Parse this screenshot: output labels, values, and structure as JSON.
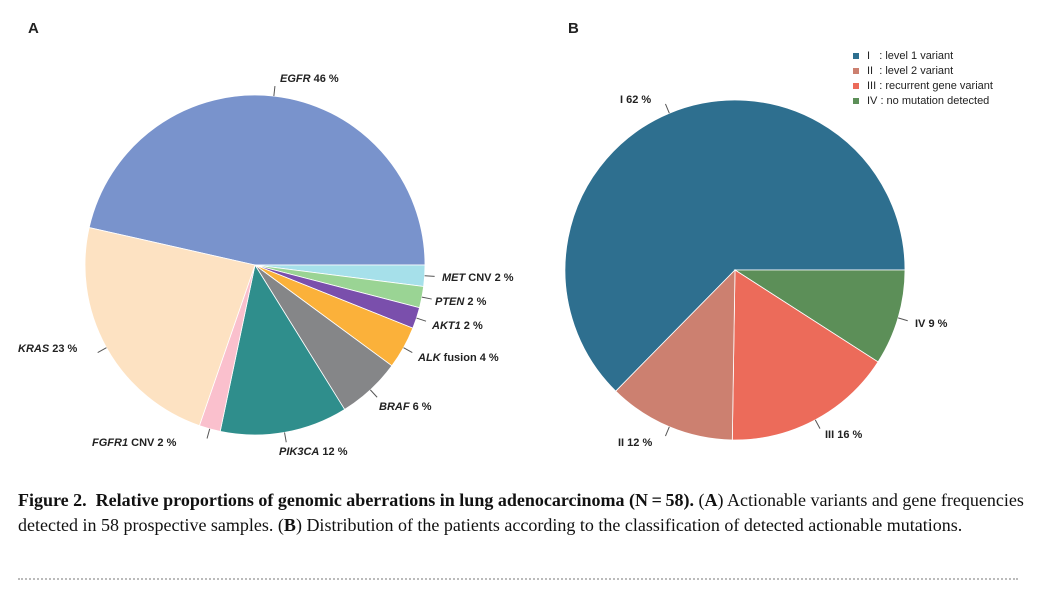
{
  "chart_data": [
    {
      "type": "pie",
      "panel_label": "A",
      "slices": [
        {
          "gene": "EGFR",
          "suffix": "",
          "percent": "46 %",
          "value": 46,
          "color": "#7993cc"
        },
        {
          "gene": "MET",
          "suffix": "CNV",
          "percent": "2 %",
          "value": 2,
          "color": "#a6e0ea"
        },
        {
          "gene": "PTEN",
          "suffix": "",
          "percent": "2 %",
          "value": 2,
          "color": "#9ad494"
        },
        {
          "gene": "AKT1",
          "suffix": "",
          "percent": "2 %",
          "value": 2,
          "color": "#7a4fac"
        },
        {
          "gene": "ALK",
          "suffix": "fusion",
          "percent": "4 %",
          "value": 4,
          "color": "#fbb13a"
        },
        {
          "gene": "BRAF",
          "suffix": "",
          "percent": "6 %",
          "value": 6,
          "color": "#858688"
        },
        {
          "gene": "PIK3CA",
          "suffix": "",
          "percent": "12 %",
          "value": 12,
          "color": "#2f8e8c"
        },
        {
          "gene": "FGFR1",
          "suffix": "CNV",
          "percent": "2 %",
          "value": 2,
          "color": "#fac0cd"
        },
        {
          "gene": "KRAS",
          "suffix": "",
          "percent": "23 %",
          "value": 23,
          "color": "#fde2c2"
        }
      ]
    },
    {
      "type": "pie",
      "panel_label": "B",
      "slices": [
        {
          "label": "I",
          "percent": "62 %",
          "value": 62,
          "color": "#2e6f8f"
        },
        {
          "label": "IV",
          "percent": "9 %",
          "value": 9,
          "color": "#5c8f58"
        },
        {
          "label": "III",
          "percent": "16 %",
          "value": 16,
          "color": "#ec6b5a"
        },
        {
          "label": "II",
          "percent": "12 %",
          "value": 12,
          "color": "#cc8070"
        }
      ],
      "legend": {
        "placement": "top-right",
        "entries": [
          {
            "text": "I   : level 1 variant",
            "color": "#2e6f8f"
          },
          {
            "text": "II  : level 2 variant",
            "color": "#cc8070"
          },
          {
            "text": "III : recurrent gene variant",
            "color": "#ec6b5a"
          },
          {
            "text": "IV : no mutation detected",
            "color": "#5c8f58"
          }
        ]
      }
    }
  ],
  "caption": {
    "figure_label": "Figure 2.",
    "title": "Relative proportions of genomic aberrations in lung adenocarcinoma (N = 58).",
    "panel_a_letter": "A",
    "panel_a_text": "Actionable variants and gene frequencies detected in 58 prospective samples.",
    "panel_b_letter": "B",
    "panel_b_text": "Distribution of the patients according to the classification of detected actionable mutations."
  }
}
